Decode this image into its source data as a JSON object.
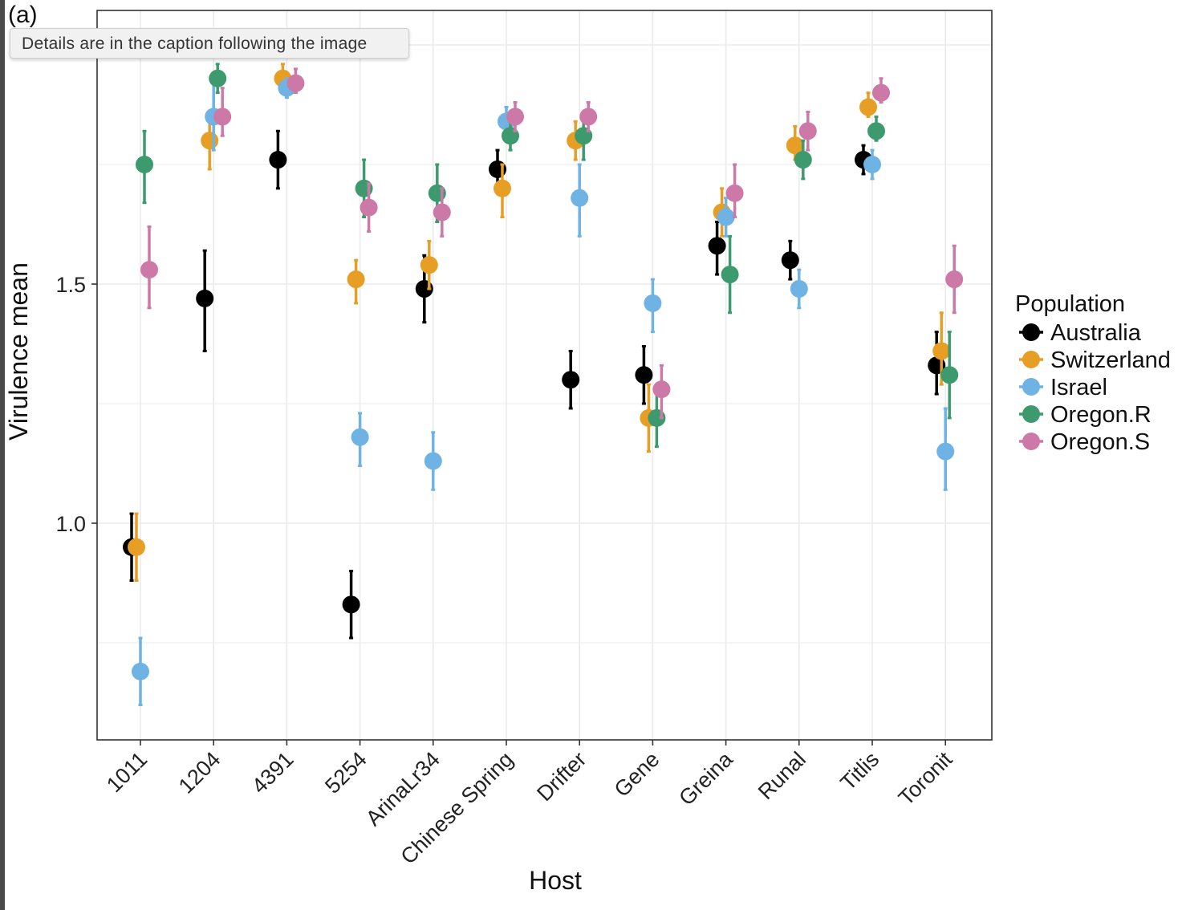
{
  "panel_label": "(a)",
  "tooltip": {
    "text": "Details are in the caption following the image"
  },
  "chart_data": {
    "type": "scatter",
    "subtype": "point-with-error-bars",
    "title": "",
    "xlabel": "Host",
    "ylabel": "Virulence mean",
    "ylim": [
      0.55,
      2.07
    ],
    "yticks": [
      1.0,
      1.5
    ],
    "ytick_labels": [
      "1.0",
      "1.5"
    ],
    "grid": true,
    "legend": {
      "title": "Population",
      "placement": "right"
    },
    "categories": [
      "1011",
      "1204",
      "4391",
      "5254",
      "ArinaLr34",
      "Chinese Spring",
      "Drifter",
      "Gene",
      "Greina",
      "Runal",
      "Titlis",
      "Toronit"
    ],
    "series": [
      {
        "name": "Australia",
        "color": "#000000",
        "values": [
          0.95,
          1.47,
          1.76,
          0.83,
          1.49,
          1.74,
          1.3,
          1.31,
          1.58,
          1.55,
          1.76,
          1.33
        ],
        "lower": [
          0.88,
          1.36,
          1.7,
          0.76,
          1.42,
          1.7,
          1.24,
          1.25,
          1.52,
          1.51,
          1.73,
          1.27
        ],
        "upper": [
          1.02,
          1.57,
          1.82,
          0.9,
          1.56,
          1.78,
          1.36,
          1.37,
          1.63,
          1.59,
          1.79,
          1.4
        ]
      },
      {
        "name": "Switzerland",
        "color": "#E69F24",
        "values": [
          0.95,
          1.8,
          1.93,
          1.51,
          1.54,
          1.7,
          1.8,
          1.22,
          1.65,
          1.79,
          1.87,
          1.36
        ],
        "lower": [
          0.88,
          1.74,
          1.9,
          1.46,
          1.49,
          1.64,
          1.76,
          1.15,
          1.6,
          1.76,
          1.85,
          1.29
        ],
        "upper": [
          1.02,
          1.85,
          1.96,
          1.55,
          1.59,
          1.75,
          1.84,
          1.29,
          1.7,
          1.83,
          1.9,
          1.44
        ]
      },
      {
        "name": "Israel",
        "color": "#6FB3E4",
        "values": [
          0.69,
          1.85,
          1.91,
          1.18,
          1.13,
          1.84,
          1.68,
          1.46,
          1.64,
          1.49,
          1.75,
          1.15
        ],
        "lower": [
          0.62,
          1.78,
          1.89,
          1.12,
          1.07,
          1.8,
          1.6,
          1.4,
          1.6,
          1.45,
          1.72,
          1.07
        ],
        "upper": [
          0.76,
          1.92,
          1.93,
          1.23,
          1.19,
          1.87,
          1.75,
          1.51,
          1.68,
          1.53,
          1.78,
          1.24
        ]
      },
      {
        "name": "Oregon.R",
        "color": "#3C9A6E",
        "values": [
          1.75,
          1.93,
          null,
          1.7,
          1.69,
          1.81,
          1.81,
          1.22,
          1.52,
          1.76,
          1.82,
          1.31
        ],
        "lower": [
          1.67,
          1.9,
          null,
          1.64,
          1.63,
          1.78,
          1.76,
          1.16,
          1.44,
          1.72,
          1.8,
          1.22
        ],
        "upper": [
          1.82,
          1.96,
          null,
          1.76,
          1.75,
          1.84,
          1.85,
          1.28,
          1.6,
          1.8,
          1.85,
          1.4
        ]
      },
      {
        "name": "Oregon.S",
        "color": "#CC79A7",
        "values": [
          1.53,
          1.85,
          1.92,
          1.66,
          1.65,
          1.85,
          1.85,
          1.28,
          1.69,
          1.82,
          1.9,
          1.51
        ],
        "lower": [
          1.45,
          1.81,
          1.9,
          1.61,
          1.6,
          1.82,
          1.82,
          1.22,
          1.64,
          1.78,
          1.88,
          1.44
        ],
        "upper": [
          1.62,
          1.91,
          1.95,
          1.71,
          1.7,
          1.88,
          1.88,
          1.33,
          1.75,
          1.86,
          1.93,
          1.58
        ]
      }
    ]
  }
}
